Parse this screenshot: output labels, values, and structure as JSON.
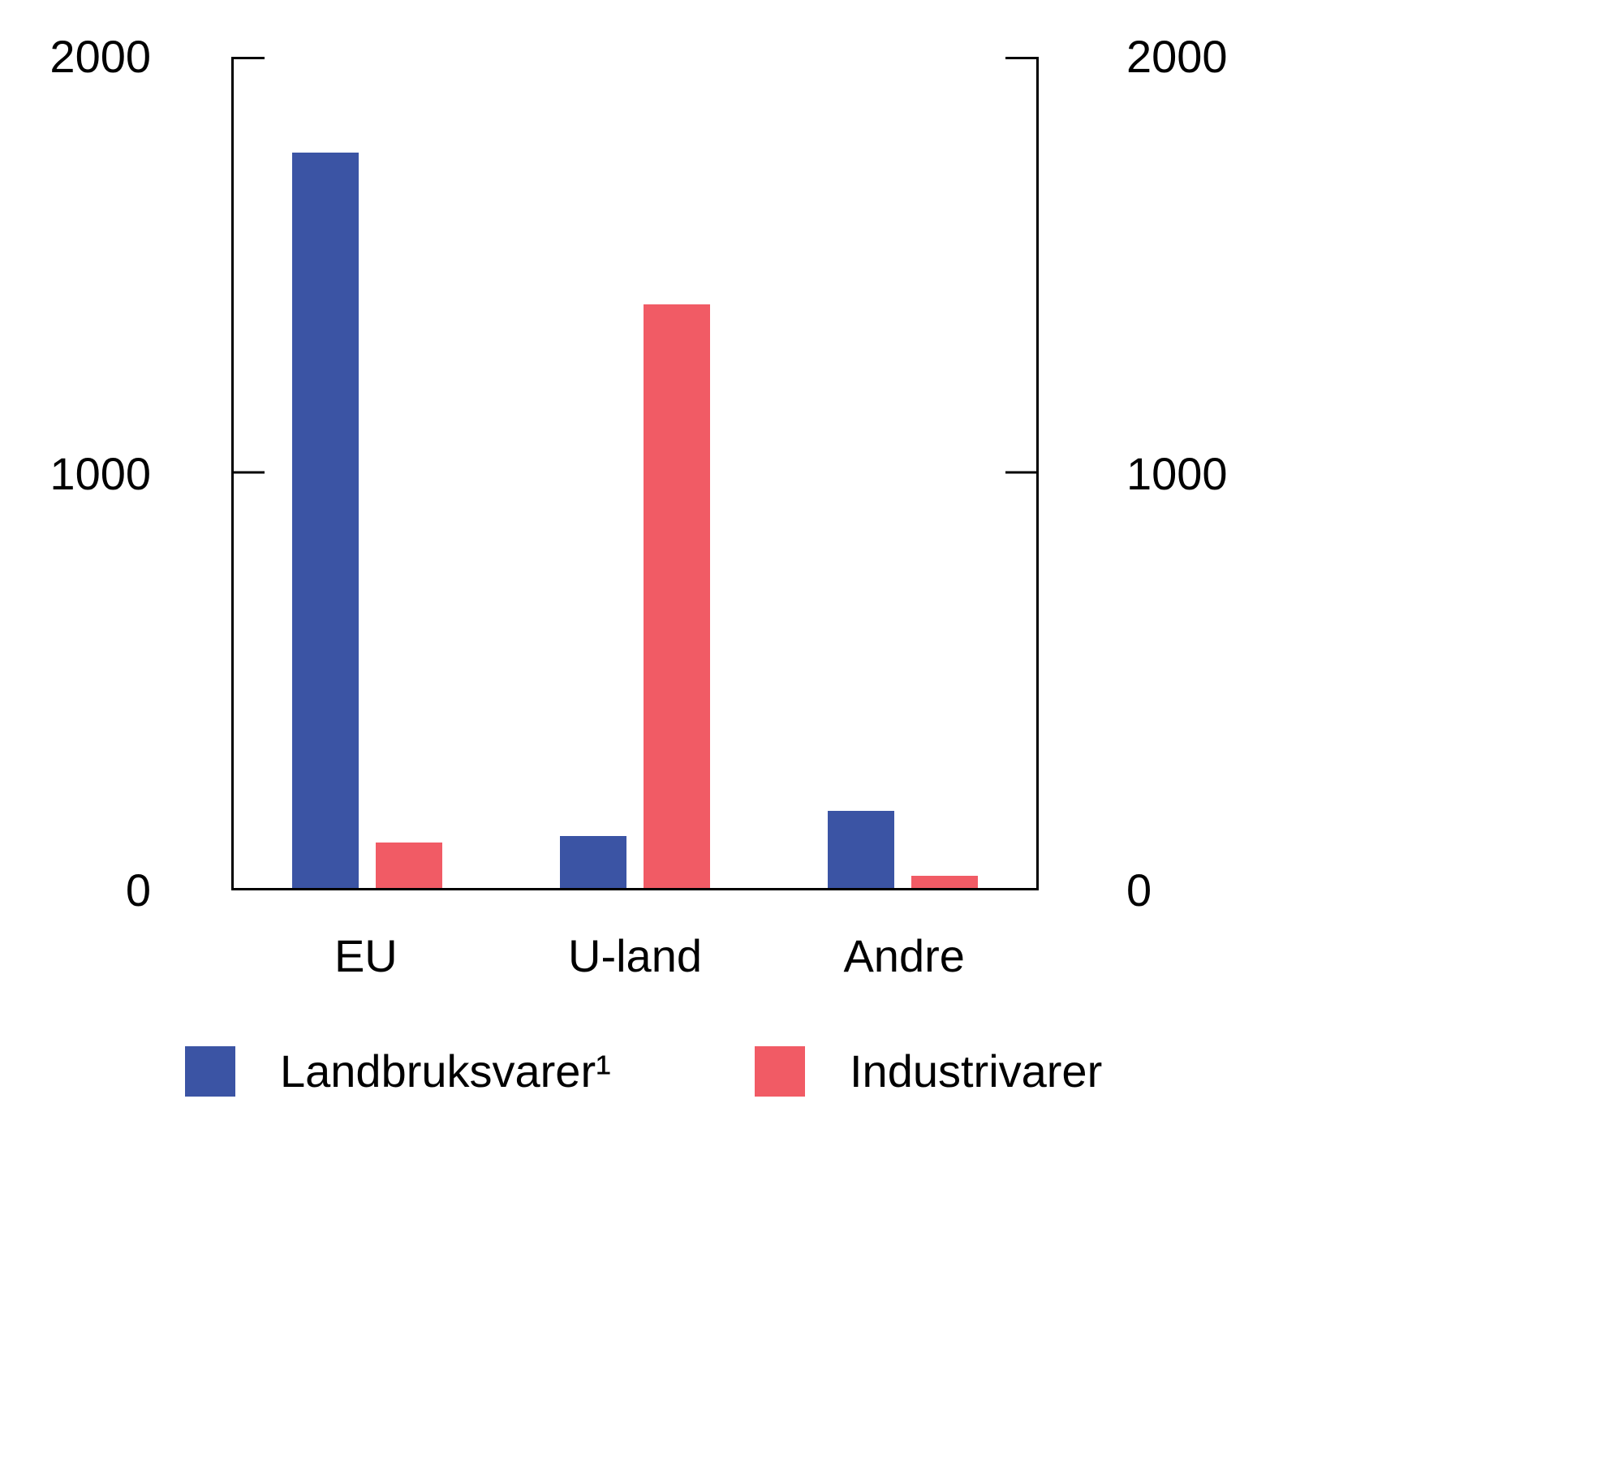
{
  "chart_data": {
    "type": "bar",
    "categories": [
      "EU",
      "U-land",
      "Andre"
    ],
    "series": [
      {
        "name": "Landbruksvarer¹",
        "color": "#3B54A4",
        "values": [
          1770,
          125,
          185
        ]
      },
      {
        "name": "Industrivarer",
        "color": "#F15B65",
        "values": [
          110,
          1405,
          30
        ]
      }
    ],
    "title": "",
    "xlabel": "",
    "ylabel": "",
    "ylim": [
      0,
      2000
    ],
    "yticks": [
      0,
      1000,
      2000
    ],
    "ytick_labels": [
      "2000",
      "1000",
      "0"
    ],
    "legend_position": "bottom",
    "grid": false,
    "axis_color": "#000000",
    "background_color": "#ffffff"
  }
}
